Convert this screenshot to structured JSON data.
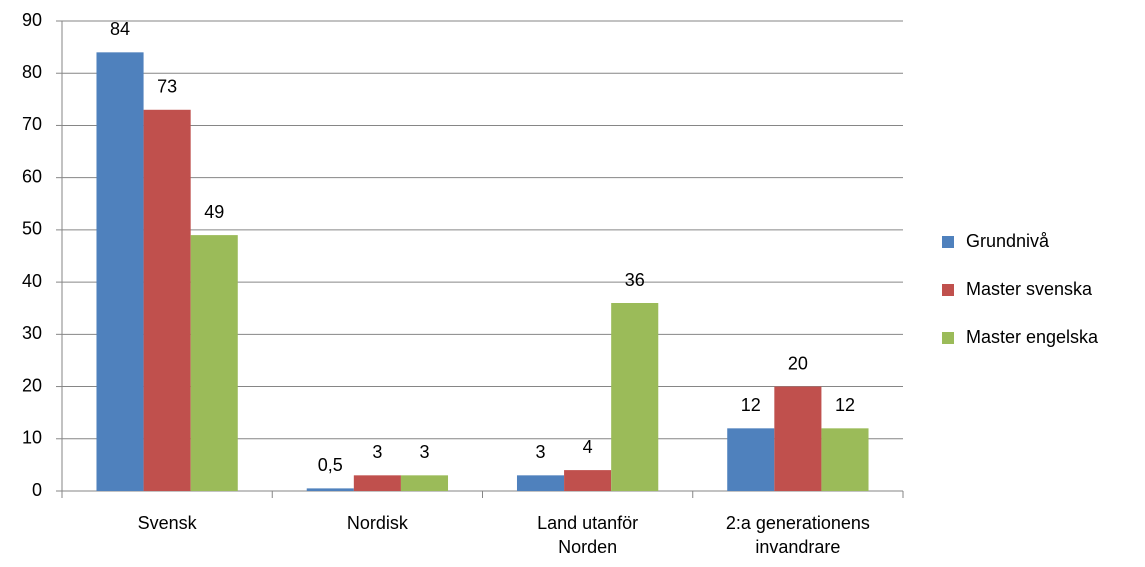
{
  "chart_data": {
    "type": "bar",
    "categories": [
      "Svensk",
      "Nordisk",
      "Land utanför Norden",
      "2:a generationens invandrare"
    ],
    "series": [
      {
        "name": "Grundnivå",
        "color": "#4f81bd",
        "values": [
          84,
          0.5,
          3,
          12
        ],
        "value_labels": [
          "84",
          "0,5",
          "3",
          "12"
        ]
      },
      {
        "name": "Master svenska",
        "color": "#c0504d",
        "values": [
          73,
          3,
          4,
          20
        ]
      },
      {
        "name": "Master engelska",
        "color": "#9bbb59",
        "values": [
          49,
          3,
          36,
          12
        ]
      }
    ],
    "ylim": [
      0,
      90
    ],
    "yticks": [
      0,
      10,
      20,
      30,
      40,
      50,
      60,
      70,
      80,
      90
    ],
    "grid": true,
    "legend": "right"
  }
}
